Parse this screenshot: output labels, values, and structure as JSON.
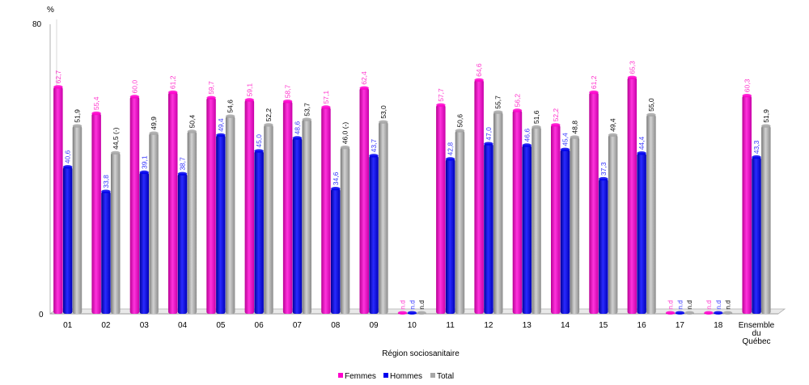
{
  "chart_data": {
    "type": "bar",
    "y_unit": "%",
    "ylim": [
      0,
      80
    ],
    "y_ticks": [
      "0",
      "80"
    ],
    "xlabel": "Région sociosanitaire",
    "categories": [
      "01",
      "02",
      "03",
      "04",
      "05",
      "06",
      "07",
      "08",
      "09",
      "10",
      "11",
      "12",
      "13",
      "14",
      "15",
      "16",
      "17",
      "18",
      "Ensemble du Québec"
    ],
    "series": [
      {
        "name": "Femmes",
        "color": "#ff00cc",
        "values": [
          62.7,
          55.4,
          60.0,
          61.2,
          59.7,
          59.1,
          58.7,
          57.1,
          62.4,
          null,
          57.7,
          64.6,
          56.2,
          52.2,
          61.2,
          65.3,
          null,
          null,
          60.3
        ],
        "labels": [
          "62,7",
          "55,4",
          "60,0",
          "61,2",
          "59,7",
          "59,1",
          "58,7",
          "57,1",
          "62,4",
          "n.d",
          "57,7",
          "64,6",
          "56,2",
          "52,2",
          "61,2",
          "65,3",
          "n.d",
          "n.d",
          "60,3"
        ]
      },
      {
        "name": "Hommes",
        "color": "#0000ee",
        "values": [
          40.6,
          33.8,
          39.1,
          38.7,
          49.4,
          45.0,
          48.6,
          34.6,
          43.7,
          null,
          42.8,
          47.0,
          46.6,
          45.4,
          37.3,
          44.4,
          null,
          null,
          43.3
        ],
        "labels": [
          "40,6",
          "33,8",
          "39,1",
          "38,7",
          "49,4",
          "45,0",
          "48,6",
          "34,6",
          "43,7",
          "n.d",
          "42,8",
          "47,0",
          "46,6",
          "45,4",
          "37,3",
          "44,4",
          "n.d",
          "n.d",
          "43,3"
        ]
      },
      {
        "name": "Total",
        "color": "#a6a6a6",
        "values": [
          51.9,
          44.5,
          49.9,
          50.4,
          54.6,
          52.2,
          53.7,
          46.0,
          53.0,
          null,
          50.6,
          55.7,
          51.6,
          48.8,
          49.4,
          55.0,
          null,
          null,
          51.9
        ],
        "labels": [
          "51,9",
          "44,5 (-)",
          "49,9",
          "50,4",
          "54,6",
          "52,2",
          "53,7",
          "46,0 (-)",
          "53,0",
          "n.d",
          "50,6",
          "55,7",
          "51,6",
          "48,8",
          "49,4",
          "55,0",
          "n.d",
          "n.d",
          "51,9"
        ]
      }
    ],
    "legend_position": "bottom-center",
    "grid": false
  }
}
